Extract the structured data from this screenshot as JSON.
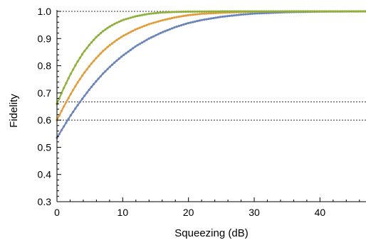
{
  "chart_data": {
    "type": "scatter",
    "title": "",
    "xlabel": "Squeezing (dB)",
    "ylabel": "Fidelity",
    "xlim": [
      0,
      47
    ],
    "ylim": [
      0.3,
      1.0
    ],
    "x_ticks": [
      "0",
      "10",
      "20",
      "30",
      "40"
    ],
    "x_tick_values": [
      0,
      10,
      20,
      30,
      40
    ],
    "y_ticks": [
      "0.3",
      "0.4",
      "0.5",
      "0.6",
      "0.7",
      "0.8",
      "0.9",
      "1.0"
    ],
    "y_tick_values": [
      0.3,
      0.4,
      0.5,
      0.6,
      0.7,
      0.8,
      0.9,
      1.0
    ],
    "reference_lines": [
      {
        "y": 1.0,
        "style": "dotted"
      },
      {
        "y": 0.667,
        "style": "dotted"
      },
      {
        "y": 0.6,
        "style": "dotted"
      }
    ],
    "series": [
      {
        "color": "#8fb03c",
        "x": [
          0,
          1,
          2,
          3,
          4,
          5,
          6,
          7,
          8,
          9,
          10,
          12,
          14,
          16,
          18,
          20,
          25,
          30,
          35,
          40,
          47
        ],
        "y": [
          0.66,
          0.716,
          0.766,
          0.81,
          0.848,
          0.879,
          0.906,
          0.927,
          0.944,
          0.957,
          0.968,
          0.982,
          0.991,
          0.996,
          0.998,
          0.999,
          1.0,
          1.0,
          1.0,
          1.0,
          1.0
        ]
      },
      {
        "color": "#e19d3c",
        "x": [
          0,
          1,
          2,
          3,
          4,
          5,
          6,
          7,
          8,
          9,
          10,
          12,
          14,
          16,
          18,
          20,
          22,
          25,
          30,
          35,
          40,
          47
        ],
        "y": [
          0.6,
          0.648,
          0.692,
          0.733,
          0.769,
          0.801,
          0.829,
          0.854,
          0.875,
          0.893,
          0.909,
          0.934,
          0.953,
          0.967,
          0.978,
          0.986,
          0.991,
          0.995,
          0.999,
          1.0,
          1.0,
          1.0
        ]
      },
      {
        "color": "#6b84b8",
        "x": [
          0,
          1,
          2,
          3,
          4,
          5,
          6,
          7,
          8,
          9,
          10,
          12,
          14,
          16,
          18,
          20,
          22,
          25,
          28,
          30,
          35,
          40,
          47
        ],
        "y": [
          0.535,
          0.575,
          0.614,
          0.65,
          0.683,
          0.715,
          0.744,
          0.771,
          0.795,
          0.817,
          0.837,
          0.872,
          0.9,
          0.923,
          0.942,
          0.957,
          0.968,
          0.98,
          0.988,
          0.992,
          0.997,
          0.999,
          1.0
        ]
      }
    ]
  }
}
